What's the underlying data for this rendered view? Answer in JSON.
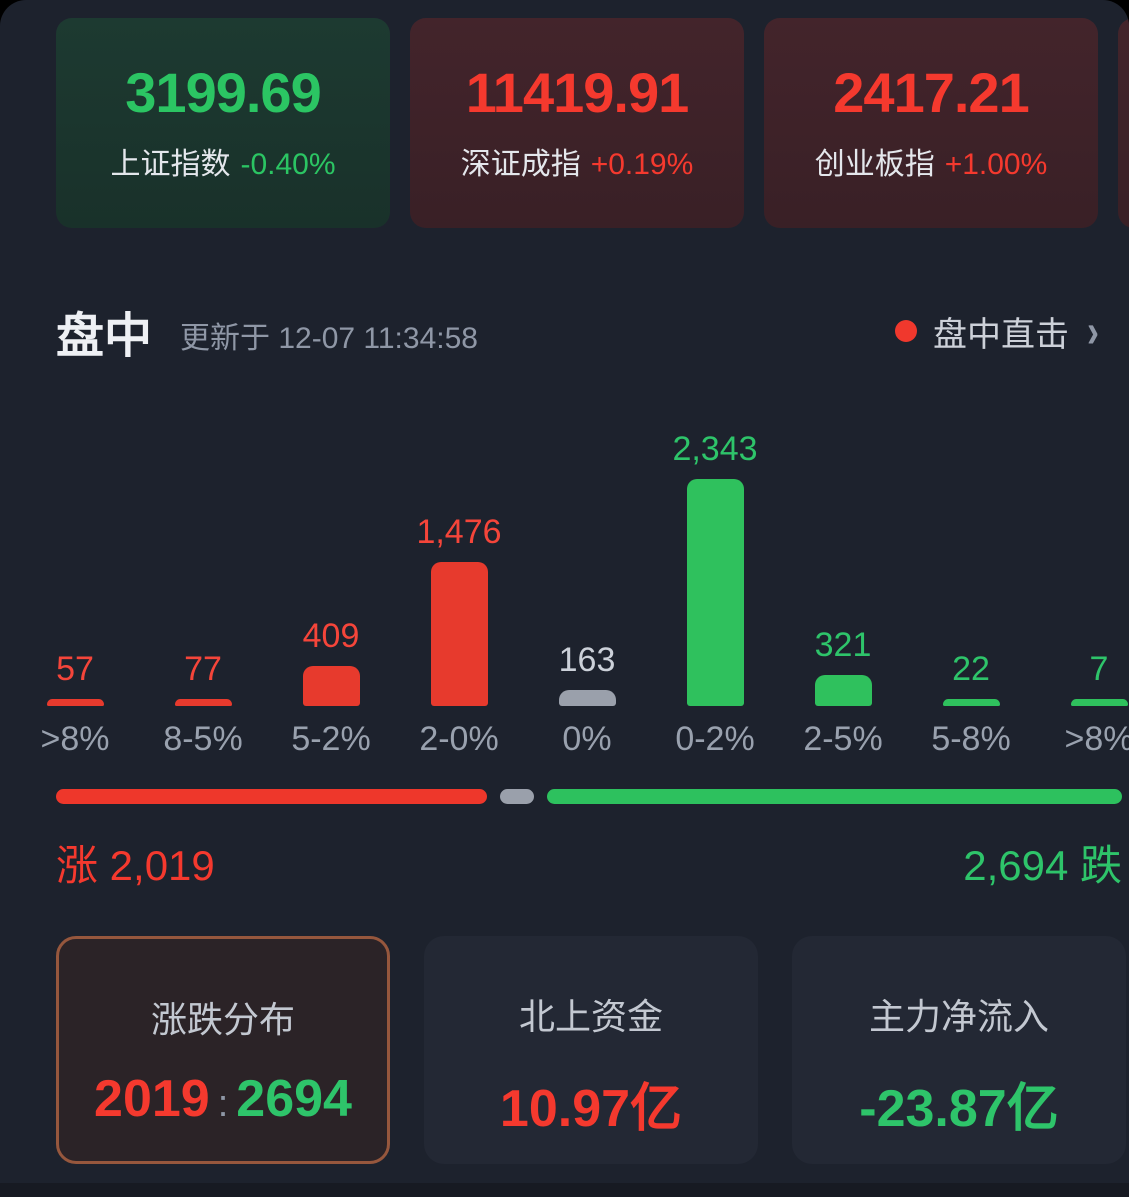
{
  "indices": [
    {
      "name": "上证指数",
      "value": "3199.69",
      "change": "-0.40%",
      "direction": "down"
    },
    {
      "name": "深证成指",
      "value": "11419.91",
      "change": "+0.19%",
      "direction": "up"
    },
    {
      "name": "创业板指",
      "value": "2417.21",
      "change": "+1.00%",
      "direction": "up"
    }
  ],
  "section": {
    "title": "盘中",
    "updated": "更新于 12-07 11:34:58",
    "live_label": "盘中直击",
    "chevron": "›"
  },
  "chart_data": {
    "type": "bar",
    "title": "涨跌分布",
    "categories": [
      ">8%",
      "8-5%",
      "5-2%",
      "2-0%",
      "0%",
      "0-2%",
      "2-5%",
      "5-8%",
      ">8%"
    ],
    "values": [
      57,
      77,
      409,
      1476,
      163,
      2343,
      321,
      22,
      7
    ],
    "value_labels": [
      "57",
      "77",
      "409",
      "1,476",
      "163",
      "2,343",
      "321",
      "22",
      "7"
    ],
    "bar_colors": [
      "red",
      "red",
      "red",
      "red",
      "gray",
      "green",
      "green",
      "green",
      "green"
    ],
    "ylim": [
      0,
      2343
    ],
    "grid": false,
    "legend": false,
    "advancers": 2019,
    "unchanged": 163,
    "decliners": 2694,
    "up_label": "涨 2,019",
    "down_label": "2,694 跌"
  },
  "summary_cards": [
    {
      "label": "涨跌分布",
      "value_left": "2019",
      "value_sep": ":",
      "value_right": "2694",
      "selected": true
    },
    {
      "label": "北上资金",
      "value": "10.97亿",
      "color": "red"
    },
    {
      "label": "主力净流入",
      "value": "-23.87亿",
      "color": "green"
    }
  ],
  "colors": {
    "red_text": "#f5453a",
    "red_bar": "#e73a2d",
    "green_text": "#2ec46a",
    "green_bar": "#2fc15d",
    "gray_text": "#ccd1d9",
    "gray_bar": "#9aa0ab",
    "accent_dot": "#f0382d",
    "panel_bg": "#1d222d"
  }
}
